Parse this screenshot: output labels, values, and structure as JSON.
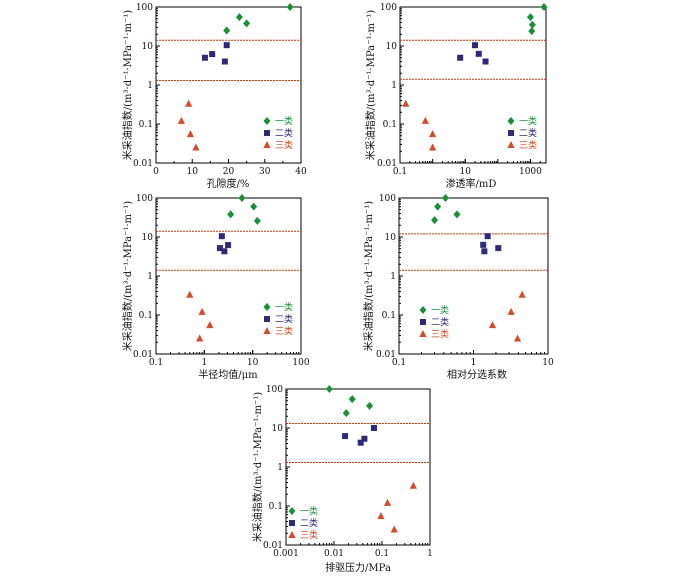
{
  "colors": {
    "class1": "#1a8f3a",
    "class2": "#2e2a7a",
    "class3": "#d44a2a",
    "refline": "#cc3300"
  },
  "legend": [
    "一类",
    "二类",
    "三类"
  ],
  "chart_data": [
    {
      "type": "scatter",
      "xlabel": "孔隙度/%",
      "ylabel": "米采油指数/(m³·d⁻¹·MPa⁻¹·m⁻¹)",
      "xscale": "linear",
      "yscale": "log",
      "xlim": [
        0,
        40
      ],
      "ylim": [
        0.01,
        100
      ],
      "xticks": [
        "0",
        "10",
        "20",
        "30",
        "40"
      ],
      "yticks": [
        "0.01",
        "0.1",
        "1",
        "10",
        "100"
      ],
      "ref_lines_y": [
        14,
        1.3
      ],
      "legend_position": "bottom-right",
      "series": [
        {
          "name": "一类",
          "marker": "diamond",
          "points": [
            [
              19.5,
              25
            ],
            [
              23,
              55
            ],
            [
              25,
              38
            ],
            [
              37,
              100
            ]
          ]
        },
        {
          "name": "二类",
          "marker": "square",
          "points": [
            [
              13.5,
              5
            ],
            [
              15.5,
              6.2
            ],
            [
              19,
              4
            ],
            [
              19.5,
              10.5
            ]
          ]
        },
        {
          "name": "三类",
          "marker": "triangle",
          "points": [
            [
              7,
              0.12
            ],
            [
              9,
              0.33
            ],
            [
              9.5,
              0.055
            ],
            [
              11,
              0.025
            ]
          ]
        }
      ]
    },
    {
      "type": "scatter",
      "xlabel": "渗透率/mD",
      "ylabel": "米采油指数/(m³·d⁻¹·MPa⁻¹·m⁻¹)",
      "xscale": "log",
      "yscale": "log",
      "xlim": [
        0.1,
        3000
      ],
      "ylim": [
        0.01,
        100
      ],
      "xticks": [
        "0.1",
        "10",
        "1000"
      ],
      "yticks": [
        "0.01",
        "0.1",
        "1",
        "10",
        "100"
      ],
      "ref_lines_y": [
        14,
        1.4
      ],
      "legend_position": "bottom-right",
      "series": [
        {
          "name": "一类",
          "marker": "diamond",
          "points": [
            [
              1000,
              55
            ],
            [
              1150,
              35
            ],
            [
              1100,
              24
            ],
            [
              2600,
              100
            ]
          ]
        },
        {
          "name": "二类",
          "marker": "square",
          "points": [
            [
              7,
              5
            ],
            [
              20,
              10.5
            ],
            [
              26,
              6.3
            ],
            [
              42,
              4
            ]
          ]
        },
        {
          "name": "三类",
          "marker": "triangle",
          "points": [
            [
              0.15,
              0.33
            ],
            [
              0.6,
              0.12
            ],
            [
              1,
              0.055
            ],
            [
              1,
              0.025
            ]
          ]
        }
      ]
    },
    {
      "type": "scatter",
      "xlabel": "半径均值/μm",
      "ylabel": "米采油指数/(m³·d⁻¹·MPa⁻¹·m⁻¹)",
      "xscale": "log",
      "yscale": "log",
      "xlim": [
        0.1,
        100
      ],
      "ylim": [
        0.01,
        100
      ],
      "xticks": [
        "0.1",
        "1",
        "10",
        "100"
      ],
      "yticks": [
        "0.01",
        "0.1",
        "1",
        "10",
        "100"
      ],
      "ref_lines_y": [
        14,
        1.4
      ],
      "legend_position": "bottom-right",
      "series": [
        {
          "name": "一类",
          "marker": "diamond",
          "points": [
            [
              3.5,
              38
            ],
            [
              6,
              100
            ],
            [
              10.5,
              60
            ],
            [
              12.5,
              26
            ]
          ]
        },
        {
          "name": "二类",
          "marker": "square",
          "points": [
            [
              2.1,
              5.2
            ],
            [
              2.3,
              10.5
            ],
            [
              2.6,
              4.3
            ],
            [
              3.1,
              6.2
            ]
          ]
        },
        {
          "name": "三类",
          "marker": "triangle",
          "points": [
            [
              0.5,
              0.33
            ],
            [
              0.8,
              0.025
            ],
            [
              0.9,
              0.12
            ],
            [
              1.3,
              0.055
            ]
          ]
        }
      ]
    },
    {
      "type": "scatter",
      "xlabel": "相对分选系数",
      "ylabel": "米采油指数/(m³·d⁻¹·MPa⁻¹·m⁻¹)",
      "xscale": "log",
      "yscale": "log",
      "xlim": [
        0.1,
        10
      ],
      "ylim": [
        0.01,
        100
      ],
      "xticks": [
        "0.1",
        "1",
        "10"
      ],
      "yticks": [
        "0.01",
        "0.1",
        "1",
        "10",
        "100"
      ],
      "ref_lines_y": [
        12,
        1.4
      ],
      "legend_position": "bottom-left",
      "series": [
        {
          "name": "一类",
          "marker": "diamond",
          "points": [
            [
              0.3,
              27
            ],
            [
              0.33,
              60
            ],
            [
              0.42,
              100
            ],
            [
              0.6,
              38
            ]
          ]
        },
        {
          "name": "二类",
          "marker": "square",
          "points": [
            [
              1.35,
              6.3
            ],
            [
              1.4,
              4.3
            ],
            [
              1.55,
              10.5
            ],
            [
              2.15,
              5.2
            ]
          ]
        },
        {
          "name": "三类",
          "marker": "triangle",
          "points": [
            [
              1.8,
              0.055
            ],
            [
              3.2,
              0.12
            ],
            [
              3.9,
              0.025
            ],
            [
              4.5,
              0.33
            ]
          ]
        }
      ]
    },
    {
      "type": "scatter",
      "xlabel": "排驱压力/MPa",
      "ylabel": "米采油指数/(m³·d⁻¹·MPa⁻¹·m⁻¹)",
      "xscale": "log",
      "yscale": "log",
      "xlim": [
        0.001,
        1
      ],
      "ylim": [
        0.01,
        100
      ],
      "xticks": [
        "0.001",
        "0.01",
        "0.1",
        "1"
      ],
      "yticks": [
        "0.01",
        "0.1",
        "1",
        "10",
        "100"
      ],
      "ref_lines_y": [
        13,
        1.3
      ],
      "legend_position": "bottom-left",
      "series": [
        {
          "name": "一类",
          "marker": "diamond",
          "points": [
            [
              0.008,
              100
            ],
            [
              0.018,
              24
            ],
            [
              0.024,
              55
            ],
            [
              0.055,
              37
            ]
          ]
        },
        {
          "name": "二类",
          "marker": "square",
          "points": [
            [
              0.017,
              6.2
            ],
            [
              0.036,
              4.2
            ],
            [
              0.043,
              5.3
            ],
            [
              0.068,
              10
            ]
          ]
        },
        {
          "name": "三类",
          "marker": "triangle",
          "points": [
            [
              0.095,
              0.055
            ],
            [
              0.13,
              0.12
            ],
            [
              0.18,
              0.025
            ],
            [
              0.45,
              0.33
            ]
          ]
        }
      ]
    }
  ]
}
